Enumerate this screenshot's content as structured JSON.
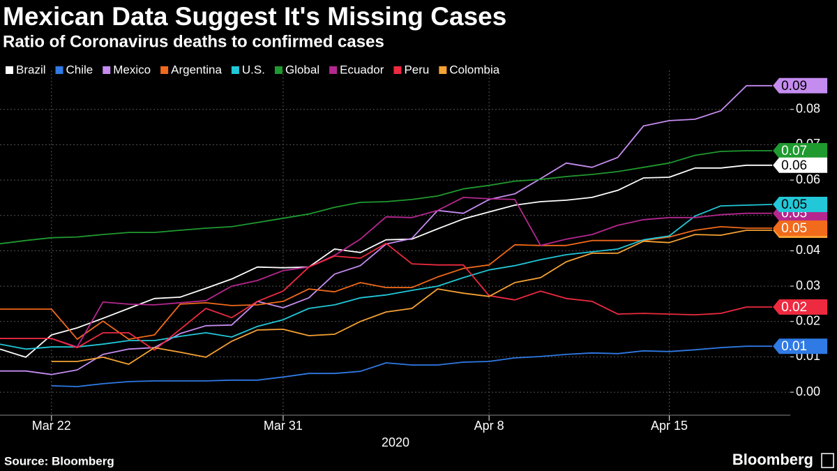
{
  "chart_data": {
    "type": "line",
    "title": "Mexican Data Suggest It's Missing Cases",
    "subtitle": "Ratio of Coronavirus deaths to confirmed cases",
    "source": "Source: Bloomberg",
    "brand": "Bloomberg",
    "xlabel": "2020",
    "x": [
      "2020-03-20",
      "2020-03-21",
      "2020-03-22",
      "2020-03-23",
      "2020-03-24",
      "2020-03-25",
      "2020-03-26",
      "2020-03-27",
      "2020-03-28",
      "2020-03-29",
      "2020-03-30",
      "2020-03-31",
      "2020-04-01",
      "2020-04-02",
      "2020-04-03",
      "2020-04-04",
      "2020-04-05",
      "2020-04-06",
      "2020-04-07",
      "2020-04-08",
      "2020-04-09",
      "2020-04-10",
      "2020-04-11",
      "2020-04-12",
      "2020-04-13",
      "2020-04-14",
      "2020-04-15",
      "2020-04-16",
      "2020-04-17",
      "2020-04-18",
      "2020-04-19"
    ],
    "xlim": [
      "2020-03-20",
      "2020-04-20"
    ],
    "xticks": [
      {
        "value": "2020-03-22",
        "label": "Mar 22"
      },
      {
        "value": "2020-03-31",
        "label": "Mar 31"
      },
      {
        "value": "2020-04-08",
        "label": "Apr 8"
      },
      {
        "value": "2020-04-15",
        "label": "Apr 15"
      }
    ],
    "ylim": [
      -0.0065,
      0.091
    ],
    "yticks": [
      {
        "value": 0,
        "label": "0.00"
      },
      0.01,
      0.02,
      0.03,
      0.04,
      0.05,
      0.06,
      0.07,
      0.08
    ],
    "grid": true,
    "series": [
      {
        "name": "Brazil",
        "color": "#ffffff",
        "end_label": "0.06",
        "values": [
          0.0122,
          0.0099,
          0.0162,
          0.0182,
          0.0209,
          0.0237,
          0.0265,
          0.0269,
          0.0294,
          0.032,
          0.0354,
          0.0352,
          0.0354,
          0.0405,
          0.0395,
          0.0431,
          0.0433,
          0.0462,
          0.049,
          0.051,
          0.0529,
          0.0539,
          0.0543,
          0.0551,
          0.0571,
          0.0606,
          0.0608,
          0.0634,
          0.0634,
          0.0642,
          0.0642
        ]
      },
      {
        "name": "Chile",
        "color": "#2f7ae5",
        "end_label": "0.01",
        "values": [
          null,
          null,
          0.0018,
          0.0016,
          0.0024,
          0.003,
          0.0032,
          0.0032,
          0.0032,
          0.0034,
          0.0034,
          0.0043,
          0.0053,
          0.0053,
          0.0059,
          0.0083,
          0.0077,
          0.0077,
          0.0085,
          0.0087,
          0.0097,
          0.0101,
          0.0107,
          0.0111,
          0.0109,
          0.0117,
          0.0115,
          0.012,
          0.0126,
          0.013,
          0.013
        ]
      },
      {
        "name": "Mexico",
        "color": "#c58cf0",
        "end_label": "0.09",
        "values": [
          0.006,
          0.006,
          0.005,
          0.0063,
          0.0107,
          0.0122,
          0.0126,
          0.0166,
          0.0188,
          0.019,
          0.0257,
          0.0239,
          0.0267,
          0.0334,
          0.0358,
          0.0419,
          0.0435,
          0.0514,
          0.0506,
          0.0545,
          0.0561,
          0.0604,
          0.0648,
          0.0636,
          0.0664,
          0.0753,
          0.0768,
          0.0772,
          0.0796,
          0.0867,
          0.0867
        ]
      },
      {
        "name": "Argentina",
        "color": "#f26a1b",
        "end_label": "0.05",
        "values": [
          0.0235,
          0.0235,
          0.0235,
          0.015,
          0.0201,
          0.015,
          0.0162,
          0.0249,
          0.0253,
          0.0245,
          0.0247,
          0.0257,
          0.0292,
          0.0284,
          0.031,
          0.0296,
          0.0296,
          0.0326,
          0.035,
          0.036,
          0.0417,
          0.0415,
          0.0415,
          0.0429,
          0.0429,
          0.0429,
          0.0439,
          0.0458,
          0.0468,
          0.0464,
          0.0464
        ]
      },
      {
        "name": "U.S.",
        "color": "#22c8d8",
        "end_label": "0.05",
        "values": [
          0.0136,
          0.0122,
          0.0128,
          0.0128,
          0.0136,
          0.0146,
          0.0146,
          0.0158,
          0.0168,
          0.0156,
          0.0186,
          0.0205,
          0.0237,
          0.0247,
          0.0267,
          0.0275,
          0.0288,
          0.03,
          0.0324,
          0.0346,
          0.0358,
          0.0375,
          0.0389,
          0.0397,
          0.0405,
          0.0431,
          0.0442,
          0.0498,
          0.0527,
          0.0529,
          0.0531
        ]
      },
      {
        "name": "Global",
        "color": "#1f9a2f",
        "end_label": "0.07",
        "values": [
          0.042,
          0.0429,
          0.0437,
          0.0439,
          0.0446,
          0.0452,
          0.0452,
          0.0458,
          0.0464,
          0.0468,
          0.048,
          0.0492,
          0.0504,
          0.0523,
          0.0537,
          0.0539,
          0.0545,
          0.0555,
          0.0575,
          0.0585,
          0.0597,
          0.0602,
          0.061,
          0.0616,
          0.0624,
          0.0636,
          0.0648,
          0.067,
          0.0681,
          0.0683,
          0.0683
        ]
      },
      {
        "name": "Ecuador",
        "color": "#b5278f",
        "end_label": "0.05",
        "values": [
          0.0152,
          0.0152,
          0.0152,
          0.0128,
          0.0255,
          0.0249,
          0.0247,
          0.0253,
          0.0259,
          0.03,
          0.0316,
          0.0344,
          0.0354,
          0.0387,
          0.0433,
          0.0496,
          0.0494,
          0.0514,
          0.0551,
          0.0547,
          0.0545,
          0.0415,
          0.0433,
          0.0446,
          0.0472,
          0.0488,
          0.0494,
          0.0494,
          0.0502,
          0.0506,
          0.0506
        ]
      },
      {
        "name": "Peru",
        "color": "#ee2a40",
        "end_label": "0.02",
        "values": [
          0.0152,
          0.0152,
          0.0152,
          0.0126,
          0.0168,
          0.0168,
          0.0119,
          0.0178,
          0.0237,
          0.0211,
          0.0257,
          0.0286,
          0.0354,
          0.0385,
          0.0379,
          0.0421,
          0.0363,
          0.036,
          0.036,
          0.0273,
          0.0261,
          0.0286,
          0.0265,
          0.0257,
          0.0221,
          0.0223,
          0.0221,
          0.0219,
          0.0223,
          0.0241,
          0.0241
        ]
      },
      {
        "name": "Colombia",
        "color": "#f7a234",
        "end_label": "0.05",
        "values": [
          null,
          null,
          0.0087,
          0.0087,
          0.0099,
          0.0079,
          0.0126,
          0.0113,
          0.0099,
          0.0144,
          0.0176,
          0.0178,
          0.016,
          0.0164,
          0.02,
          0.0227,
          0.0237,
          0.0292,
          0.028,
          0.0271,
          0.031,
          0.0324,
          0.0369,
          0.0393,
          0.0393,
          0.0427,
          0.0423,
          0.0446,
          0.0444,
          0.0458,
          0.0458
        ]
      }
    ]
  }
}
